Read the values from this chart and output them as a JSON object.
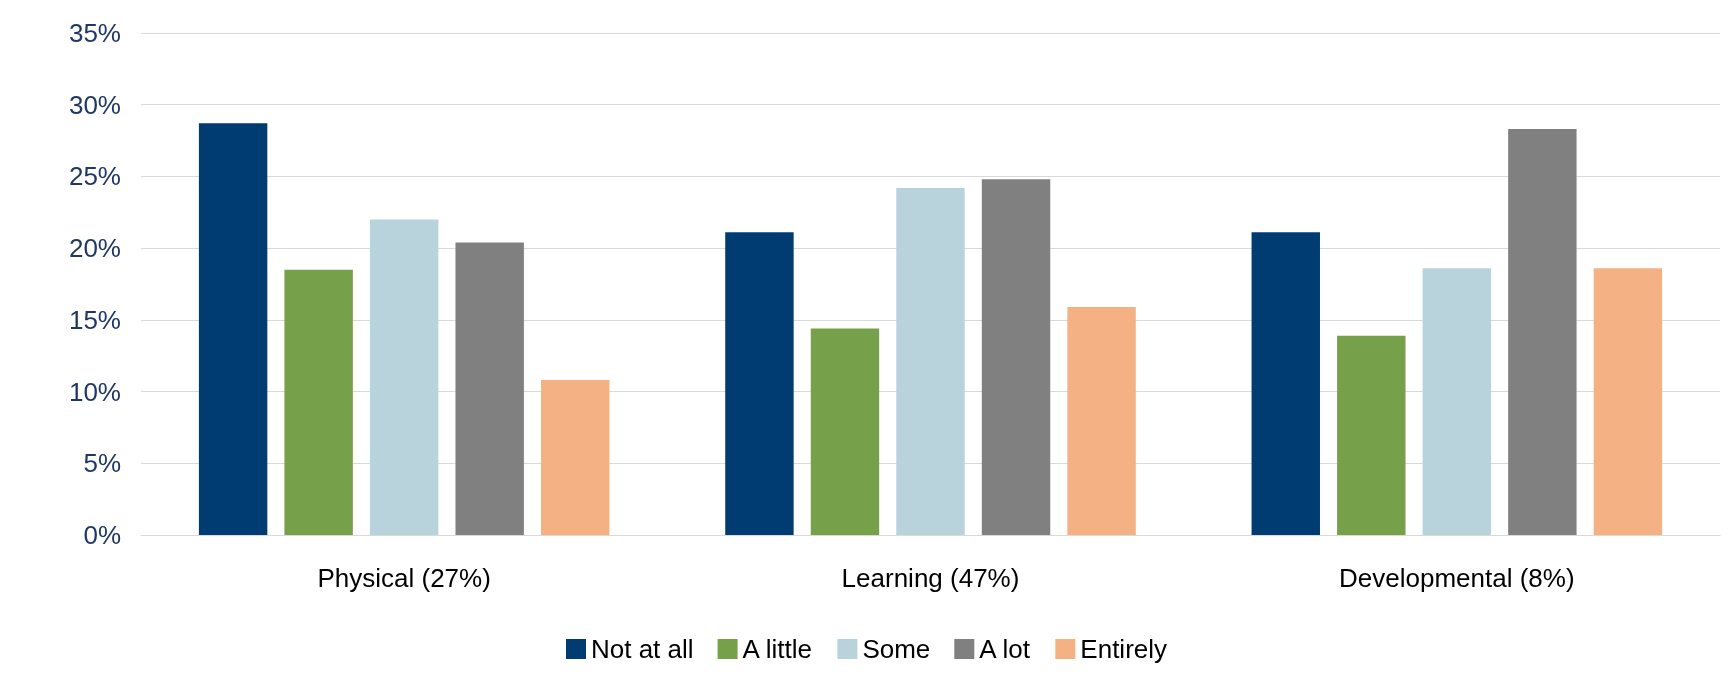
{
  "chart_data": {
    "type": "bar",
    "categories": [
      "Physical (27%)",
      "Learning (47%)",
      "Developmental (8%)"
    ],
    "series": [
      {
        "name": "Not at all",
        "color": "#003b71",
        "values": [
          28.7,
          21.1,
          21.1
        ]
      },
      {
        "name": "A little",
        "color": "#77a04a",
        "values": [
          18.5,
          14.4,
          13.9
        ]
      },
      {
        "name": "Some",
        "color": "#b9d3dd",
        "values": [
          22.0,
          24.2,
          18.6
        ]
      },
      {
        "name": "A lot",
        "color": "#808080",
        "values": [
          20.4,
          24.8,
          28.3
        ]
      },
      {
        "name": "Entirely",
        "color": "#f4b183",
        "values": [
          10.8,
          15.9,
          18.6
        ]
      }
    ],
    "ylim": [
      0,
      35
    ],
    "yticks": [
      {
        "value": 0,
        "label": "0%"
      },
      {
        "value": 5,
        "label": "5%"
      },
      {
        "value": 10,
        "label": "10%"
      },
      {
        "value": 15,
        "label": "15%"
      },
      {
        "value": 20,
        "label": "20%"
      },
      {
        "value": 25,
        "label": "25%"
      },
      {
        "value": 30,
        "label": "30%"
      },
      {
        "value": 35,
        "label": "35%"
      }
    ],
    "grid": true,
    "legend": "bottom"
  }
}
